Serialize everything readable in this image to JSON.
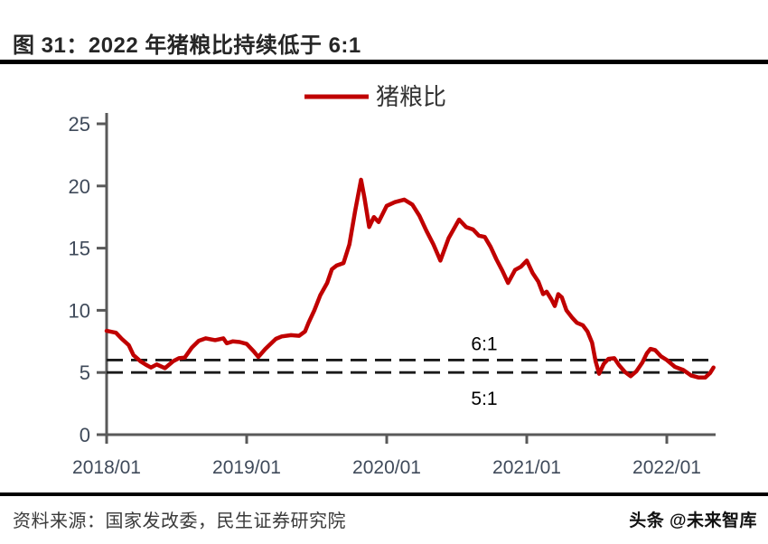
{
  "page": {
    "title": "图 31：2022 年猪粮比持续低于 6:1",
    "source_note": "资料来源：国家发改委，民生证券研究院",
    "watermark": "头条 @未来智库"
  },
  "chart_data": {
    "type": "line",
    "title": "图 31：2022 年猪粮比持续低于 6:1",
    "legend_position": "top-center",
    "grid": false,
    "colors": {
      "series": "#c00000",
      "guide_lines": "#1a1a1a",
      "axis": "#595959",
      "tick_labels": "#3f4a5a",
      "annotation": "#000000"
    },
    "x_axis": {
      "unit": "months since 2018/01",
      "range_months": [
        0,
        52.3
      ],
      "ticks": [
        {
          "month": 0,
          "label": "2018/01"
        },
        {
          "month": 12,
          "label": "2019/01"
        },
        {
          "month": 24,
          "label": "2020/01"
        },
        {
          "month": 36,
          "label": "2021/01"
        },
        {
          "month": 48,
          "label": "2022/01"
        }
      ]
    },
    "y_axis": {
      "range": [
        0,
        25
      ],
      "ticks": [
        0,
        5,
        10,
        15,
        20,
        25
      ]
    },
    "guides": [
      {
        "label": "6:1",
        "value": 6
      },
      {
        "label": "5:1",
        "value": 5
      }
    ],
    "series": [
      {
        "name": "猪粮比",
        "color": "#c00000",
        "points": [
          [
            0,
            8.35
          ],
          [
            0.8,
            8.2
          ],
          [
            1.3,
            7.7
          ],
          [
            1.9,
            7.2
          ],
          [
            2.3,
            6.4
          ],
          [
            2.9,
            5.9
          ],
          [
            3.4,
            5.6
          ],
          [
            3.8,
            5.4
          ],
          [
            4.3,
            5.65
          ],
          [
            5,
            5.35
          ],
          [
            5.7,
            5.9
          ],
          [
            6.2,
            6.15
          ],
          [
            6.7,
            6.2
          ],
          [
            7.3,
            7.0
          ],
          [
            7.9,
            7.55
          ],
          [
            8.5,
            7.75
          ],
          [
            9.3,
            7.6
          ],
          [
            10,
            7.75
          ],
          [
            10.3,
            7.35
          ],
          [
            10.8,
            7.5
          ],
          [
            11.4,
            7.45
          ],
          [
            12,
            7.3
          ],
          [
            12.6,
            6.7
          ],
          [
            13,
            6.25
          ],
          [
            13.6,
            6.9
          ],
          [
            14.5,
            7.7
          ],
          [
            15,
            7.9
          ],
          [
            15.8,
            8.0
          ],
          [
            16.5,
            7.95
          ],
          [
            17,
            8.3
          ],
          [
            17.3,
            9.0
          ],
          [
            17.8,
            10.0
          ],
          [
            18.3,
            11.2
          ],
          [
            18.9,
            12.2
          ],
          [
            19.3,
            13.3
          ],
          [
            19.7,
            13.6
          ],
          [
            20.3,
            13.8
          ],
          [
            20.8,
            15.3
          ],
          [
            21.3,
            18.0
          ],
          [
            21.8,
            20.5
          ],
          [
            22.1,
            19.0
          ],
          [
            22.5,
            16.7
          ],
          [
            22.9,
            17.5
          ],
          [
            23.3,
            17.1
          ],
          [
            24,
            18.4
          ],
          [
            24.7,
            18.7
          ],
          [
            25.5,
            18.9
          ],
          [
            26.2,
            18.5
          ],
          [
            26.8,
            17.6
          ],
          [
            27.4,
            16.4
          ],
          [
            28,
            15.3
          ],
          [
            28.6,
            14.0
          ],
          [
            29.3,
            15.8
          ],
          [
            30.2,
            17.3
          ],
          [
            30.8,
            16.7
          ],
          [
            31.4,
            16.5
          ],
          [
            31.9,
            16.0
          ],
          [
            32.4,
            15.9
          ],
          [
            32.9,
            15.1
          ],
          [
            33.4,
            14.1
          ],
          [
            33.9,
            13.2
          ],
          [
            34.4,
            12.2
          ],
          [
            35,
            13.25
          ],
          [
            35.5,
            13.5
          ],
          [
            36,
            14.0
          ],
          [
            36.5,
            13.0
          ],
          [
            37,
            12.3
          ],
          [
            37.4,
            11.3
          ],
          [
            37.7,
            11.5
          ],
          [
            38.1,
            10.9
          ],
          [
            38.4,
            10.35
          ],
          [
            38.7,
            11.3
          ],
          [
            39,
            11.05
          ],
          [
            39.4,
            10.0
          ],
          [
            39.9,
            9.4
          ],
          [
            40.3,
            9.0
          ],
          [
            40.8,
            8.8
          ],
          [
            41.2,
            8.3
          ],
          [
            41.6,
            7.4
          ],
          [
            41.9,
            5.9
          ],
          [
            42.2,
            4.9
          ],
          [
            42.6,
            5.7
          ],
          [
            43,
            6.1
          ],
          [
            43.5,
            6.15
          ],
          [
            43.9,
            5.6
          ],
          [
            44.4,
            5.05
          ],
          [
            44.9,
            4.7
          ],
          [
            45.4,
            5.1
          ],
          [
            45.9,
            5.8
          ],
          [
            46.3,
            6.55
          ],
          [
            46.6,
            6.9
          ],
          [
            47,
            6.8
          ],
          [
            47.5,
            6.3
          ],
          [
            48,
            6.0
          ],
          [
            48.7,
            5.45
          ],
          [
            49.4,
            5.2
          ],
          [
            50.1,
            4.75
          ],
          [
            50.7,
            4.6
          ],
          [
            51.3,
            4.6
          ],
          [
            51.7,
            4.95
          ],
          [
            52,
            5.4
          ]
        ]
      }
    ]
  }
}
